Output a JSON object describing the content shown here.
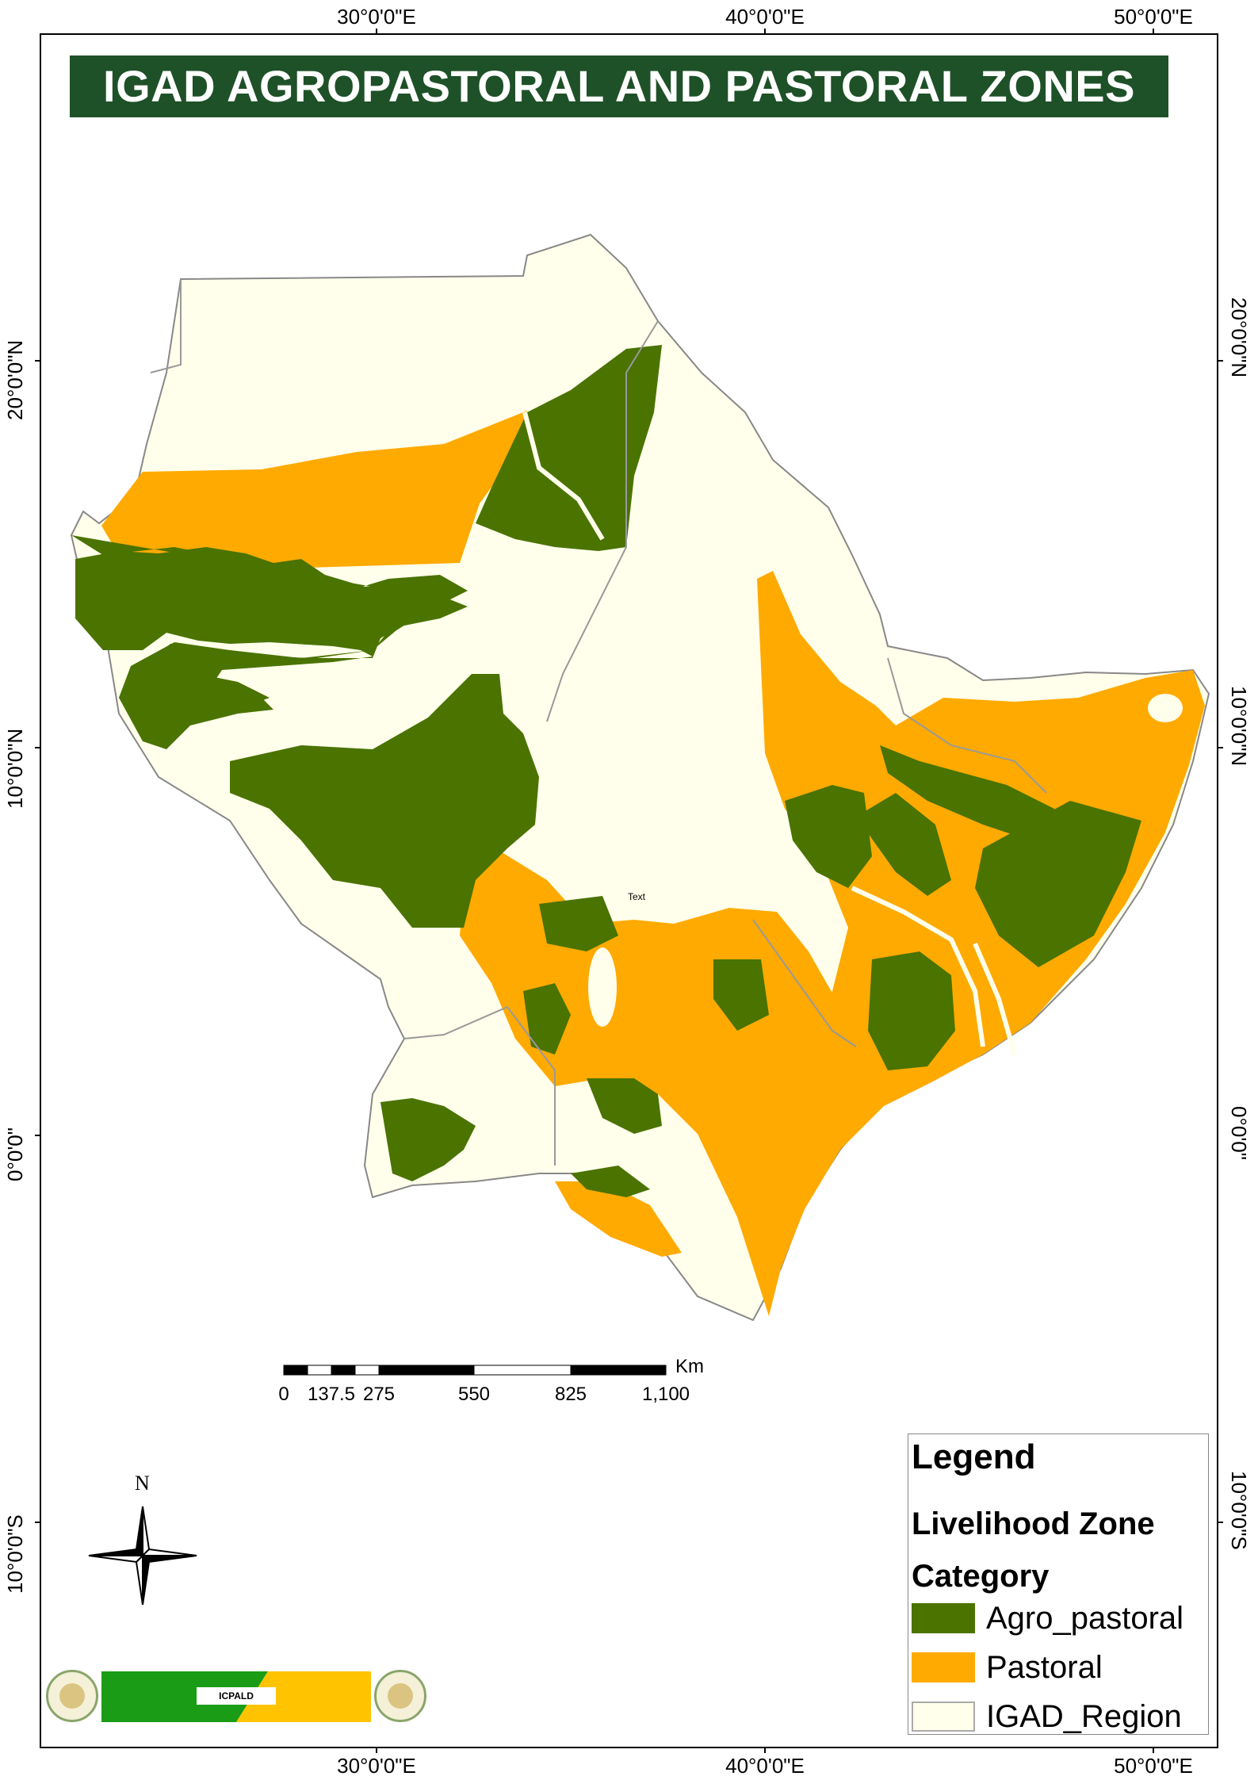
{
  "map": {
    "title": "IGAD AGROPASTORAL AND PASTORAL ZONES",
    "graticule": {
      "longitudes": [
        "30°0'0\"E",
        "40°0'0\"E",
        "50°0'0\"E"
      ],
      "latitudes": [
        "20°0'0\"N",
        "10°0'0\"N",
        "0°0'0\"",
        "10°0'0\"S"
      ]
    },
    "annotation": "Text",
    "colors": {
      "agro_pastoral": "#4a7300",
      "pastoral": "#ffaa00",
      "region": "#ffffeb",
      "title_bg": "#1e5128"
    }
  },
  "scale_bar": {
    "unit": "Km",
    "labels": [
      "0",
      "137.5",
      "275",
      "550",
      "825",
      "1,100"
    ]
  },
  "north_arrow": {
    "label": "N",
    "icon": "compass-rose-icon"
  },
  "legend": {
    "title": "Legend",
    "subtitle": "Livelihood Zone Category",
    "items": [
      {
        "label": "Agro_pastoral",
        "color": "#4a7300"
      },
      {
        "label": "Pastoral",
        "color": "#ffaa00"
      },
      {
        "label": "IGAD_Region",
        "color": "#ffffeb"
      }
    ]
  },
  "logo": {
    "text": "ICPALD",
    "colors": [
      "#1a9c16",
      "#ffc300"
    ]
  }
}
